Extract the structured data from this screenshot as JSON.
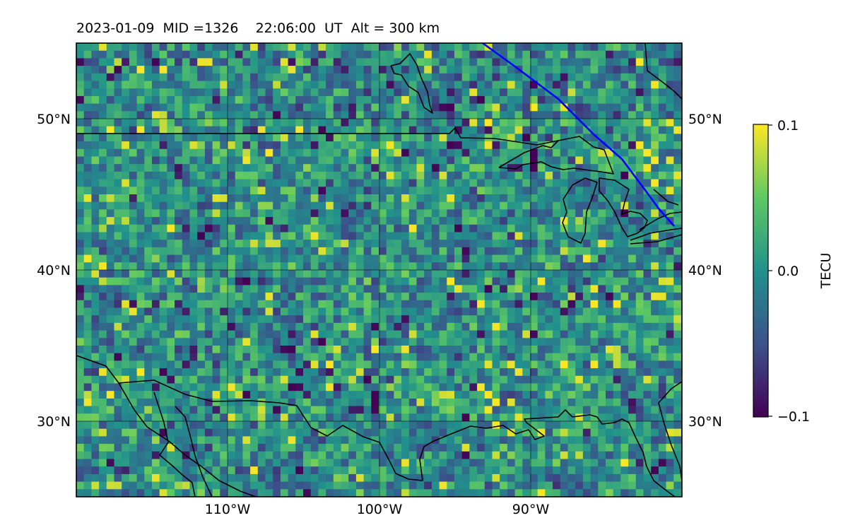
{
  "header": {
    "title": "2023-01-09  MID =1326    22:06:00  UT  Alt = 300 km"
  },
  "map": {
    "lat_labels_left": [
      "50°N",
      "40°N",
      "30°N"
    ],
    "lat_labels_right": [
      "50°N",
      "40°N",
      "30°N"
    ],
    "lon_labels": [
      "110°W",
      "100°W",
      "90°W"
    ],
    "lat_values": [
      50,
      40,
      30
    ],
    "lon_values": [
      -110,
      -100,
      -90
    ],
    "extent": {
      "lon_min": -120,
      "lon_max": -80,
      "lat_min": 25,
      "lat_max": 55
    },
    "projection": "PlateCarree",
    "grid": true,
    "overlay_line_color": "#0000ff",
    "coastline_color": "#000000"
  },
  "colorbar": {
    "label": "TECU",
    "ticks": [
      "0.1",
      "0.0",
      "−0.1"
    ],
    "tick_values": [
      0.1,
      0.0,
      -0.1
    ],
    "vmin": -0.1,
    "vmax": 0.1,
    "colormap": "viridis"
  }
}
